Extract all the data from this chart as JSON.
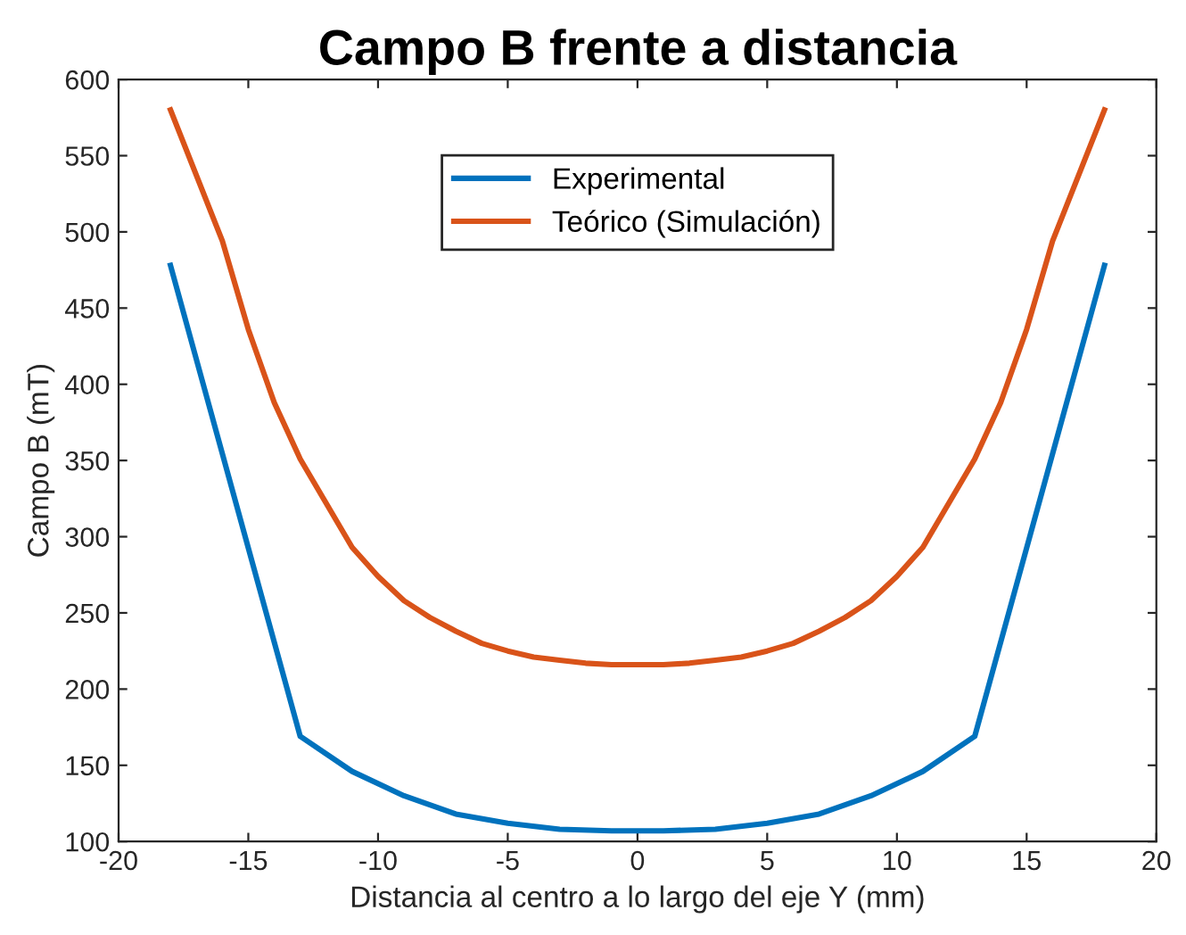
{
  "chart_data": {
    "type": "line",
    "title": "Campo B frente a distancia",
    "xlabel": "Distancia al centro a lo largo del eje Y (mm)",
    "ylabel": "Campo B (mT)",
    "xlim": [
      -20,
      20
    ],
    "xticks": [
      -20,
      -15,
      -10,
      -5,
      0,
      5,
      10,
      15,
      20
    ],
    "ylim": [
      100,
      600
    ],
    "yticks": [
      100,
      150,
      200,
      250,
      300,
      350,
      400,
      450,
      500,
      550,
      600
    ],
    "grid": false,
    "legend": "top",
    "line_style": "solid",
    "marker": "none",
    "series": [
      {
        "name": "Experimental",
        "color": "#0072bd",
        "x": [
          -18,
          -13,
          -11,
          -9,
          -7,
          -5,
          -3,
          -1,
          1,
          3,
          5,
          7,
          9,
          11,
          13,
          18
        ],
        "values": [
          478,
          169,
          146,
          130,
          118,
          112,
          108,
          107,
          107,
          108,
          112,
          118,
          130,
          146,
          169,
          478
        ]
      },
      {
        "name": "Teórico (Simulación)",
        "color": "#d95319",
        "x": [
          -18,
          -16,
          -15,
          -14,
          -13,
          -12,
          -11,
          -10,
          -9,
          -8,
          -7,
          -6,
          -5,
          -4,
          -3,
          -2,
          -1,
          0,
          1,
          2,
          3,
          4,
          5,
          6,
          7,
          8,
          9,
          10,
          11,
          12,
          13,
          14,
          15,
          16,
          18
        ],
        "values": [
          580,
          494,
          436,
          388,
          351,
          322,
          293,
          274,
          258,
          247,
          238,
          230,
          225,
          221,
          219,
          217,
          216,
          216,
          216,
          217,
          219,
          221,
          225,
          230,
          238,
          247,
          258,
          274,
          293,
          322,
          351,
          388,
          436,
          494,
          580
        ]
      }
    ]
  }
}
